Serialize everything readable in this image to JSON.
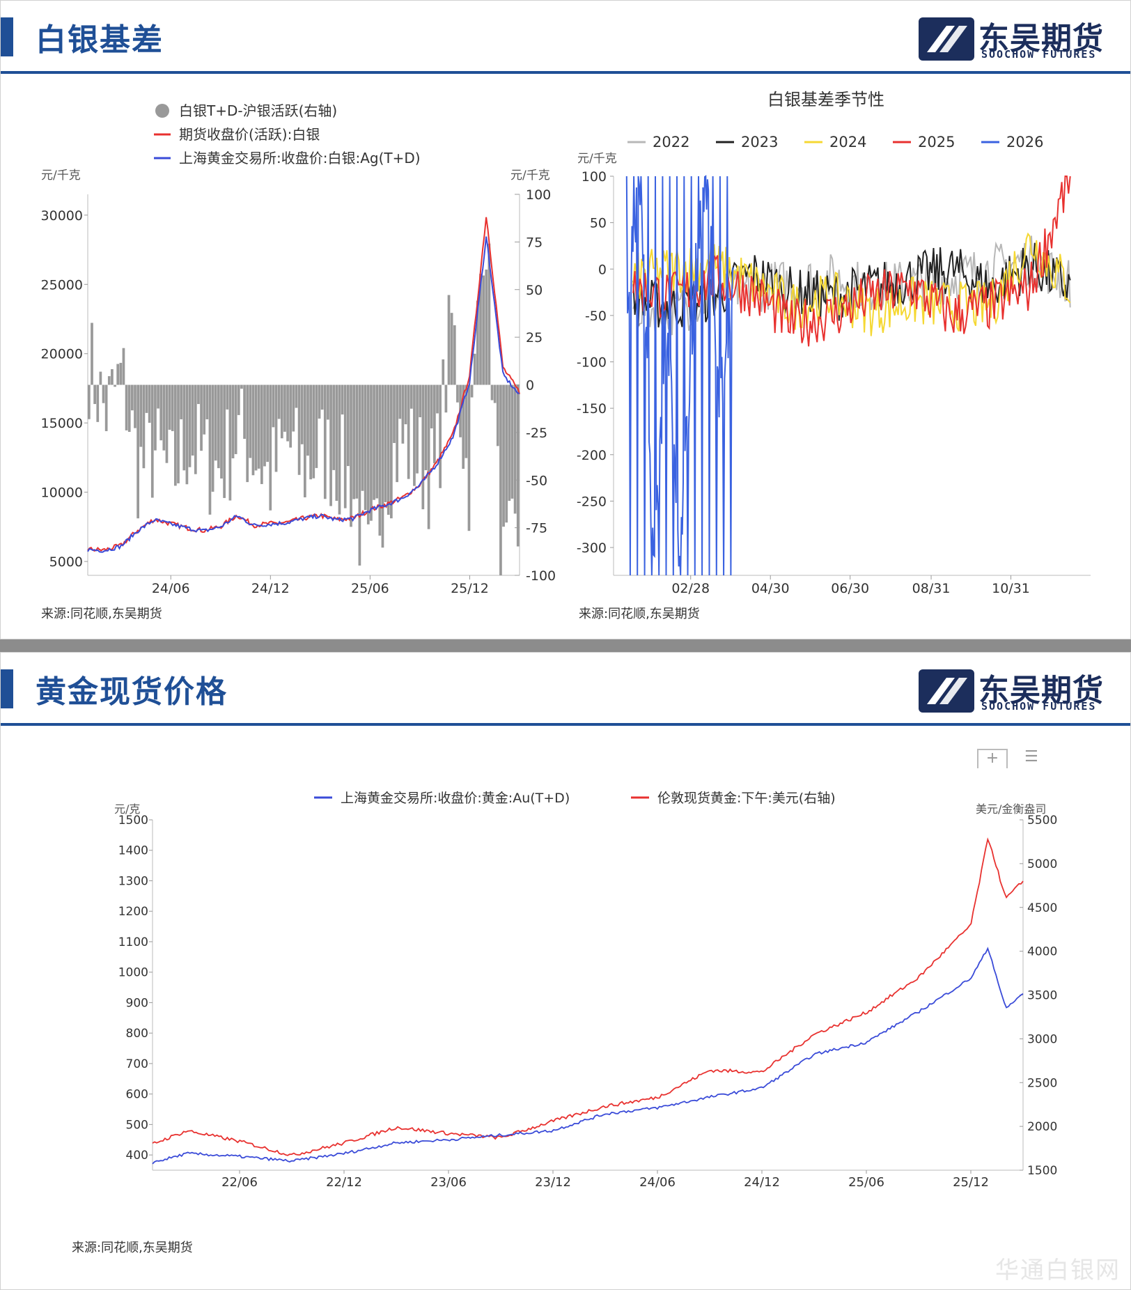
{
  "slide1": {
    "title": "白银基差",
    "logo": {
      "cn": "东吴期货",
      "en": "SOOCHOW FUTURES"
    },
    "colors": {
      "brand": "#1f4f96"
    }
  },
  "slide2": {
    "title": "黄金现货价格",
    "logo": {
      "cn": "东吴期货",
      "en": "SOOCHOW FUTURES"
    },
    "source": "来源:同花顺,东吴期货",
    "toolbar_icons": [
      "zoom-icon",
      "menu-icon"
    ]
  },
  "chart_data": [
    {
      "type": "bar+line",
      "title": "",
      "source": "来源:同花顺,东吴期货",
      "ylabel_left": "元/千克",
      "ylabel_right": "元/千克",
      "yticks_left": [
        "30000",
        "25000",
        "20000",
        "15000",
        "10000",
        "5000"
      ],
      "ylim_left": [
        5000,
        30000
      ],
      "yticks_right": [
        "100",
        "75",
        "50",
        "25",
        "0",
        "-25",
        "-50",
        "-75",
        "-100"
      ],
      "ylim_right": [
        -100,
        100
      ],
      "xticks": [
        "24/06",
        "24/12",
        "25/06",
        "25/12"
      ],
      "legend": [
        {
          "name": "白银T+D-沪银活跃(右轴)",
          "color": "#999999",
          "marker": "circle"
        },
        {
          "name": "期货收盘价(活跃):白银",
          "color": "#e8312f",
          "marker": "line"
        },
        {
          "name": "上海黄金交易所:收盘价:白银:Ag(T+D)",
          "color": "#3a4bd8",
          "marker": "line"
        }
      ],
      "series": [
        {
          "name": "上海黄金交易所:收盘价:白银:Ag(T+D)",
          "axis": "left",
          "x": [
            "24/01",
            "24/02",
            "24/03",
            "24/04",
            "24/05",
            "24/06",
            "24/07",
            "24/08",
            "24/09",
            "24/10",
            "24/11",
            "24/12",
            "25/01",
            "25/02",
            "25/03",
            "25/04",
            "25/05",
            "25/06",
            "25/07",
            "25/08",
            "25/09",
            "25/10",
            "25/11",
            "25/12",
            "26/01",
            "26/02",
            "26/03"
          ],
          "values": [
            5850,
            5800,
            6100,
            7200,
            8000,
            7700,
            7400,
            7200,
            7500,
            8300,
            7600,
            7700,
            7800,
            8100,
            8300,
            8000,
            8100,
            8700,
            9100,
            9600,
            10500,
            12000,
            14000,
            18000,
            28500,
            18500,
            17000
          ]
        },
        {
          "name": "期货收盘价(活跃):白银",
          "axis": "left",
          "x": [
            "24/01",
            "24/02",
            "24/03",
            "24/04",
            "24/05",
            "24/06",
            "24/07",
            "24/08",
            "24/09",
            "24/10",
            "24/11",
            "24/12",
            "25/01",
            "25/02",
            "25/03",
            "25/04",
            "25/05",
            "25/06",
            "25/07",
            "25/08",
            "25/09",
            "25/10",
            "25/11",
            "25/12",
            "26/01",
            "26/02",
            "26/03"
          ],
          "values": [
            5880,
            5830,
            6150,
            7250,
            8050,
            7730,
            7420,
            7230,
            7530,
            8330,
            7620,
            7730,
            7820,
            8120,
            8330,
            8020,
            8130,
            8730,
            9130,
            9630,
            10550,
            12100,
            14200,
            18500,
            30000,
            19000,
            17200
          ]
        },
        {
          "name": "白银T+D-沪银活跃(右轴)",
          "axis": "right",
          "x": [
            "24/01",
            "24/02",
            "24/03",
            "24/04",
            "24/05",
            "24/06",
            "24/07",
            "24/08",
            "24/09",
            "24/10",
            "24/11",
            "24/12",
            "25/01",
            "25/02",
            "25/03",
            "25/04",
            "25/05",
            "25/06",
            "25/07",
            "25/08",
            "25/09",
            "25/10",
            "25/11",
            "25/12",
            "26/01",
            "26/02",
            "26/03"
          ],
          "values": [
            12,
            -15,
            5,
            -45,
            -35,
            -50,
            -30,
            -40,
            -45,
            -25,
            -35,
            -50,
            -30,
            -45,
            -35,
            -40,
            -55,
            -100,
            -45,
            -30,
            -40,
            -50,
            35,
            -55,
            100,
            -100,
            -80
          ]
        }
      ]
    },
    {
      "type": "line",
      "title": "白银基差季节性",
      "source": "来源:同花顺,东吴期货",
      "ylabel": "元/千克",
      "ylim": [
        -330,
        100
      ],
      "yticks": [
        "100",
        "50",
        "0",
        "-50",
        "-100",
        "-150",
        "-200",
        "-250",
        "-300"
      ],
      "xticks": [
        "02/28",
        "04/30",
        "06/30",
        "08/31",
        "10/31"
      ],
      "legend": [
        {
          "name": "2022",
          "color": "#b7b7b7"
        },
        {
          "name": "2023",
          "color": "#222222"
        },
        {
          "name": "2024",
          "color": "#f5d833"
        },
        {
          "name": "2025",
          "color": "#e8312f"
        },
        {
          "name": "2026",
          "color": "#3a62e0"
        }
      ],
      "series": [
        {
          "name": "2022",
          "x": [
            "01/15",
            "02/15",
            "03/15",
            "04/15",
            "05/15",
            "06/15",
            "07/15",
            "08/15",
            "09/15",
            "10/15",
            "11/15",
            "12/15"
          ],
          "values": [
            -40,
            -45,
            -30,
            -20,
            -15,
            -10,
            -20,
            -15,
            -10,
            0,
            10,
            -15
          ]
        },
        {
          "name": "2023",
          "x": [
            "01/15",
            "02/15",
            "03/15",
            "04/15",
            "05/15",
            "06/15",
            "07/15",
            "08/15",
            "09/15",
            "10/15",
            "11/15",
            "12/15"
          ],
          "values": [
            -35,
            -40,
            -30,
            -5,
            -25,
            -30,
            -20,
            -10,
            0,
            -20,
            5,
            -20
          ]
        },
        {
          "name": "2024",
          "x": [
            "01/15",
            "02/15",
            "03/15",
            "04/15",
            "05/15",
            "06/15",
            "07/15",
            "08/15",
            "09/15",
            "10/15",
            "11/15",
            "12/15"
          ],
          "values": [
            -10,
            0,
            5,
            -15,
            -40,
            -30,
            -45,
            -35,
            -40,
            -40,
            30,
            -20
          ]
        },
        {
          "name": "2025",
          "x": [
            "01/15",
            "02/15",
            "03/15",
            "04/15",
            "05/15",
            "06/15",
            "07/15",
            "08/15",
            "09/15",
            "10/15",
            "11/15",
            "12/15"
          ],
          "values": [
            -20,
            -30,
            -10,
            -25,
            -60,
            -50,
            -30,
            -20,
            -50,
            -40,
            -20,
            100
          ]
        },
        {
          "name": "2026",
          "x": [
            "01/10",
            "01/20",
            "01/31",
            "02/10",
            "02/20",
            "03/01",
            "03/10",
            "03/20",
            "03/31"
          ],
          "values": [
            -50,
            100,
            -330,
            -40,
            -330,
            -20,
            100,
            -130,
            -30
          ]
        }
      ]
    },
    {
      "type": "line",
      "title": "",
      "ylabel_left": "元/克",
      "ylabel_right": "美元/金衡盎司",
      "ylim_left": [
        350,
        1500
      ],
      "ylim_right": [
        1500,
        5500
      ],
      "yticks_left": [
        "1500",
        "1400",
        "1300",
        "1200",
        "1100",
        "1000",
        "900",
        "800",
        "700",
        "600",
        "500",
        "400"
      ],
      "yticks_right": [
        "5500",
        "5000",
        "4500",
        "4000",
        "3500",
        "3000",
        "2500",
        "2000",
        "1500"
      ],
      "xticks": [
        "22/06",
        "22/12",
        "23/06",
        "23/12",
        "24/06",
        "24/12",
        "25/06",
        "25/12"
      ],
      "legend": [
        {
          "name": "上海黄金交易所:收盘价:黄金:Au(T+D)",
          "color": "#3a4bd8"
        },
        {
          "name": "伦敦现货黄金:下午:美元(右轴)",
          "color": "#e8312f"
        }
      ],
      "series": [
        {
          "name": "上海黄金交易所:收盘价:黄金:Au(T+D)",
          "axis": "left",
          "x": [
            "22/01",
            "22/03",
            "22/06",
            "22/09",
            "22/12",
            "23/03",
            "23/06",
            "23/09",
            "23/12",
            "24/03",
            "24/06",
            "24/09",
            "24/12",
            "25/03",
            "25/06",
            "25/09",
            "25/12",
            "26/01",
            "26/02",
            "26/03"
          ],
          "values": [
            375,
            405,
            395,
            380,
            405,
            440,
            450,
            465,
            480,
            535,
            555,
            590,
            620,
            730,
            770,
            870,
            980,
            1080,
            880,
            930
          ]
        },
        {
          "name": "伦敦现货黄金:下午:美元(右轴)",
          "axis": "right",
          "x": [
            "22/01",
            "22/03",
            "22/06",
            "22/09",
            "22/12",
            "23/03",
            "23/06",
            "23/09",
            "23/12",
            "24/03",
            "24/06",
            "24/09",
            "24/12",
            "25/03",
            "25/06",
            "25/09",
            "25/12",
            "26/01",
            "26/02",
            "26/03"
          ],
          "values": [
            1800,
            1950,
            1830,
            1670,
            1810,
            1990,
            1920,
            1870,
            2060,
            2230,
            2330,
            2640,
            2620,
            3050,
            3300,
            3700,
            4300,
            5300,
            4600,
            4800
          ]
        }
      ]
    }
  ]
}
